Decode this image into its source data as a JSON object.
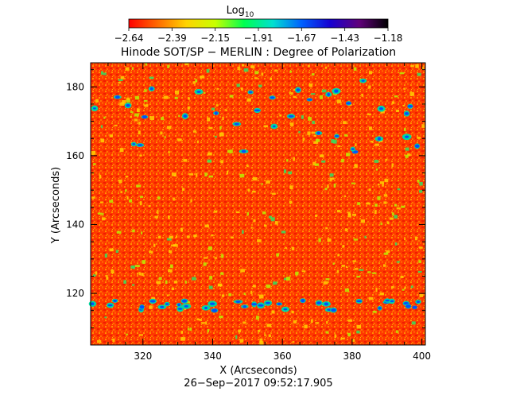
{
  "colorbar": {
    "label_main": "Log",
    "label_sub": "10",
    "tick_labels": [
      "−2.64",
      "−2.39",
      "−2.15",
      "−1.91",
      "−1.67",
      "−1.43",
      "−1.18"
    ],
    "range": [
      -2.64,
      -1.18
    ],
    "colormap": [
      "#ff0000",
      "#ff6a00",
      "#ffd400",
      "#c8ff00",
      "#00ff50",
      "#00e0d0",
      "#0060ff",
      "#1800d0",
      "#60007a",
      "#000000"
    ]
  },
  "chart_data": {
    "type": "heatmap",
    "title": "Hinode SOT/SP − MERLIN : Degree of Polarization",
    "xlabel": "X (Arcseconds)",
    "ylabel": "Y (Arcseconds)",
    "xlim": [
      305,
      401
    ],
    "ylim": [
      105,
      187
    ],
    "x_ticks": [
      320,
      340,
      360,
      380,
      400
    ],
    "y_ticks": [
      120,
      140,
      160,
      180
    ],
    "value_quantity": "log10(degree of polarization)",
    "value_range": [
      -2.64,
      -1.18
    ],
    "dominant_color": "#ff3c00"
  },
  "timestamp": "26−Sep−2017 09:52:17.905"
}
